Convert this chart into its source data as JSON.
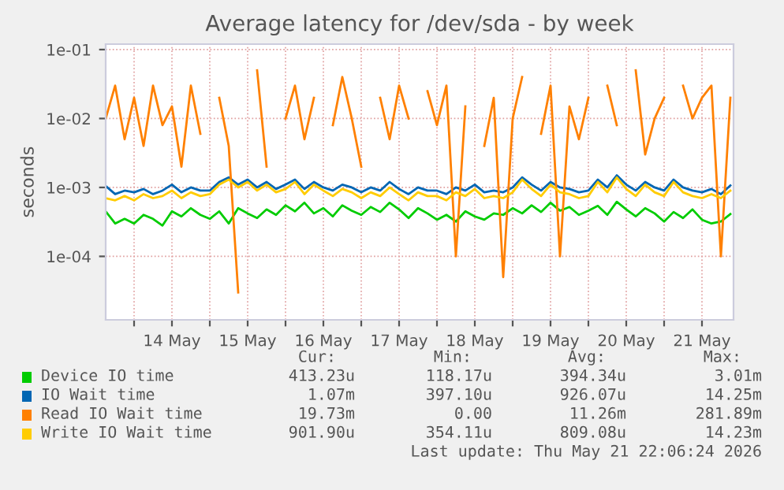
{
  "chart_data": {
    "type": "line",
    "title": "Average latency for /dev/sda - by week",
    "ylabel": "seconds",
    "x": [
      "2026-05-13T15:00",
      "2026-05-13T18:00",
      "2026-05-13T21:00",
      "2026-05-14T00:00",
      "2026-05-14T03:00",
      "2026-05-14T06:00",
      "2026-05-14T09:00",
      "2026-05-14T12:00",
      "2026-05-14T15:00",
      "2026-05-14T18:00",
      "2026-05-14T21:00",
      "2026-05-15T00:00",
      "2026-05-15T03:00",
      "2026-05-15T06:00",
      "2026-05-15T09:00",
      "2026-05-15T12:00",
      "2026-05-15T15:00",
      "2026-05-15T18:00",
      "2026-05-15T21:00",
      "2026-05-16T00:00",
      "2026-05-16T03:00",
      "2026-05-16T06:00",
      "2026-05-16T09:00",
      "2026-05-16T12:00",
      "2026-05-16T15:00",
      "2026-05-16T18:00",
      "2026-05-16T21:00",
      "2026-05-17T00:00",
      "2026-05-17T03:00",
      "2026-05-17T06:00",
      "2026-05-17T09:00",
      "2026-05-17T12:00",
      "2026-05-17T15:00",
      "2026-05-17T18:00",
      "2026-05-17T21:00",
      "2026-05-18T00:00",
      "2026-05-18T03:00",
      "2026-05-18T06:00",
      "2026-05-18T09:00",
      "2026-05-18T12:00",
      "2026-05-18T15:00",
      "2026-05-18T18:00",
      "2026-05-18T21:00",
      "2026-05-19T00:00",
      "2026-05-19T03:00",
      "2026-05-19T06:00",
      "2026-05-19T09:00",
      "2026-05-19T12:00",
      "2026-05-19T15:00",
      "2026-05-19T18:00",
      "2026-05-19T21:00",
      "2026-05-20T00:00",
      "2026-05-20T03:00",
      "2026-05-20T06:00",
      "2026-05-20T09:00",
      "2026-05-20T12:00",
      "2026-05-20T15:00",
      "2026-05-20T18:00",
      "2026-05-20T21:00",
      "2026-05-21T00:00",
      "2026-05-21T03:00",
      "2026-05-21T06:00",
      "2026-05-21T09:00",
      "2026-05-21T12:00",
      "2026-05-21T15:00",
      "2026-05-21T18:00",
      "2026-05-21T21:00"
    ],
    "series": [
      {
        "name": "Device IO time",
        "color": "#00cc00",
        "values": [
          0.00045,
          0.0003,
          0.00035,
          0.0003,
          0.0004,
          0.00035,
          0.00028,
          0.00045,
          0.00038,
          0.0005,
          0.0004,
          0.00035,
          0.00045,
          0.0003,
          0.0005,
          0.00042,
          0.00036,
          0.00048,
          0.0004,
          0.00055,
          0.00045,
          0.0006,
          0.00042,
          0.0005,
          0.00038,
          0.00055,
          0.00046,
          0.0004,
          0.00052,
          0.00044,
          0.0006,
          0.00048,
          0.00036,
          0.0005,
          0.00042,
          0.00034,
          0.0004,
          0.00032,
          0.00045,
          0.00038,
          0.00034,
          0.00042,
          0.0004,
          0.0005,
          0.00042,
          0.00055,
          0.00044,
          0.0006,
          0.00046,
          0.00052,
          0.0004,
          0.00046,
          0.00054,
          0.0004,
          0.00062,
          0.00048,
          0.00038,
          0.0005,
          0.00042,
          0.00032,
          0.00044,
          0.00036,
          0.00048,
          0.00034,
          0.0003,
          0.00032,
          0.00041
        ]
      },
      {
        "name": "IO Wait time",
        "color": "#0066b3",
        "values": [
          0.00105,
          0.0008,
          0.0009,
          0.00085,
          0.00095,
          0.0008,
          0.0009,
          0.0011,
          0.00085,
          0.001,
          0.0009,
          0.0009,
          0.0012,
          0.0014,
          0.0011,
          0.0013,
          0.001,
          0.0012,
          0.00095,
          0.0011,
          0.0013,
          0.00095,
          0.0012,
          0.001,
          0.0009,
          0.0011,
          0.001,
          0.00085,
          0.001,
          0.0009,
          0.0012,
          0.00095,
          0.0008,
          0.001,
          0.0009,
          0.0009,
          0.0008,
          0.001,
          0.0009,
          0.0011,
          0.00085,
          0.0009,
          0.00085,
          0.001,
          0.0014,
          0.0011,
          0.0009,
          0.0012,
          0.001,
          0.00095,
          0.00085,
          0.0009,
          0.0013,
          0.001,
          0.0015,
          0.0011,
          0.0009,
          0.0012,
          0.001,
          0.0009,
          0.0013,
          0.001,
          0.0009,
          0.00085,
          0.00095,
          0.0008,
          0.00107
        ]
      },
      {
        "name": "Read IO Wait time",
        "color": "#ff8000",
        "values": [
          0.01,
          0.03,
          0.005,
          0.02,
          0.004,
          0.03,
          0.008,
          0.015,
          0.002,
          0.03,
          0.006,
          null,
          0.02,
          0.004,
          3e-05,
          null,
          0.05,
          0.002,
          null,
          0.01,
          0.03,
          0.005,
          0.02,
          null,
          0.008,
          0.04,
          0.01,
          0.002,
          null,
          0.02,
          0.005,
          0.03,
          0.01,
          null,
          0.025,
          0.008,
          0.03,
          0.0001,
          0.015,
          null,
          0.004,
          0.02,
          5e-05,
          0.01,
          0.04,
          null,
          0.006,
          0.03,
          0.0001,
          0.015,
          0.005,
          0.02,
          null,
          0.03,
          0.008,
          null,
          0.05,
          0.003,
          0.01,
          0.02,
          null,
          0.03,
          0.01,
          0.02,
          0.03,
          0.0001,
          0.02
        ]
      },
      {
        "name": "Write IO Wait time",
        "color": "#ffcc00",
        "values": [
          0.0007,
          0.00065,
          0.00075,
          0.00065,
          0.0008,
          0.0007,
          0.00075,
          0.0009,
          0.0007,
          0.00085,
          0.00075,
          0.0008,
          0.0011,
          0.0013,
          0.001,
          0.0012,
          0.0009,
          0.0011,
          0.00085,
          0.00095,
          0.0012,
          0.0008,
          0.0011,
          0.0009,
          0.00075,
          0.00095,
          0.00085,
          0.0007,
          0.00085,
          0.00075,
          0.001,
          0.0008,
          0.00065,
          0.00085,
          0.00075,
          0.00075,
          0.00065,
          0.00085,
          0.00075,
          0.00095,
          0.0007,
          0.00075,
          0.0007,
          0.00085,
          0.0013,
          0.00095,
          0.00075,
          0.0011,
          0.00085,
          0.0008,
          0.0007,
          0.00075,
          0.0012,
          0.00085,
          0.0014,
          0.00095,
          0.00075,
          0.0011,
          0.00085,
          0.00075,
          0.0012,
          0.00085,
          0.00075,
          0.0007,
          0.0008,
          0.0007,
          0.0009
        ]
      }
    ],
    "log": "y",
    "ylim": [
      1.2e-05,
      0.12
    ],
    "yticks": [
      {
        "value": 0.0001,
        "label": "1e-04"
      },
      {
        "value": 0.001,
        "label": "1e-03"
      },
      {
        "value": 0.01,
        "label": "1e-02"
      },
      {
        "value": 0.1,
        "label": "1e-01"
      }
    ],
    "xlim": [
      "2026-05-13T15:00",
      "2026-05-21T22:00"
    ],
    "xticks": [
      {
        "value": "2026-05-14T00:00",
        "label": null
      },
      {
        "value": "2026-05-14T12:00",
        "label": "14 May"
      },
      {
        "value": "2026-05-15T00:00",
        "label": null
      },
      {
        "value": "2026-05-15T12:00",
        "label": "15 May"
      },
      {
        "value": "2026-05-16T00:00",
        "label": null
      },
      {
        "value": "2026-05-16T12:00",
        "label": "16 May"
      },
      {
        "value": "2026-05-17T00:00",
        "label": null
      },
      {
        "value": "2026-05-17T12:00",
        "label": "17 May"
      },
      {
        "value": "2026-05-18T00:00",
        "label": null
      },
      {
        "value": "2026-05-18T12:00",
        "label": "18 May"
      },
      {
        "value": "2026-05-19T00:00",
        "label": null
      },
      {
        "value": "2026-05-19T12:00",
        "label": "19 May"
      },
      {
        "value": "2026-05-20T00:00",
        "label": null
      },
      {
        "value": "2026-05-20T12:00",
        "label": "20 May"
      },
      {
        "value": "2026-05-21T00:00",
        "label": null
      },
      {
        "value": "2026-05-21T12:00",
        "label": "21 May"
      }
    ],
    "grid": true,
    "legend": "bottom",
    "marker": "none",
    "line_style": "solid",
    "annotations": [
      "Cur:",
      "Min:",
      "Avg:",
      "Max:",
      "413.23u",
      "118.17u",
      "394.34u",
      "3.01m",
      "1.07m",
      "397.10u",
      "926.07u",
      "14.25m",
      "19.73m",
      "0.00",
      "11.26m",
      "281.89m",
      "901.90u",
      "354.11u",
      "809.08u",
      "14.23m",
      "Last update: Thu May 21 22:06:24 2026"
    ]
  }
}
